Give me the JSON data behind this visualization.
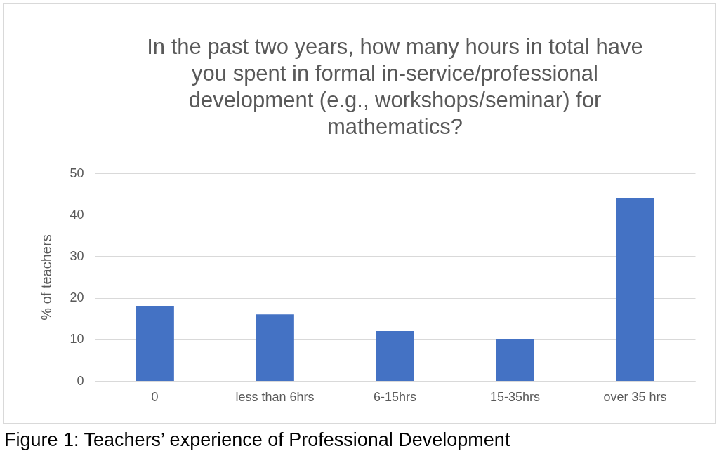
{
  "chart_data": {
    "type": "bar",
    "title": "In the past two years, how many hours in total have you spent in formal in-service/professional development (e.g., workshops/seminar) for mathematics?",
    "ylabel": "% of teachers",
    "categories": [
      "0",
      "less than 6hrs",
      "6-15hrs",
      "15-35hrs",
      "over 35 hrs"
    ],
    "values": [
      18,
      16,
      12,
      10,
      44
    ],
    "color": "#4472c4",
    "ylim": [
      0,
      50
    ],
    "yticks": [
      0,
      10,
      20,
      30,
      40,
      50
    ],
    "grid": "y",
    "annotations": [
      "Figure 1: Teachers’ experience of Professional Development"
    ]
  }
}
